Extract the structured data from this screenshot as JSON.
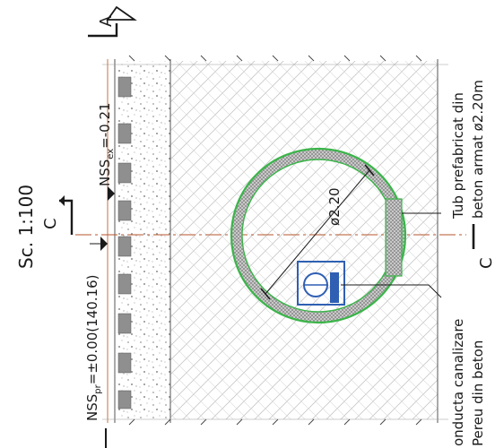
{
  "drawing": {
    "scale": "Sc. 1:100",
    "section_top": "C",
    "section_bottom": "C",
    "section_right": "A",
    "level_finished": "NSS",
    "level_finished_sub": "pr",
    "level_finished_value": "=±0.00(140.16)",
    "level_existing": "NSS",
    "level_existing_sub": "ex",
    "level_existing_value": "=-0.21",
    "diameter": "ø2.20",
    "label_pipe_line1": "Tub prefabricat din",
    "label_pipe_line2": "beton armat ø2.20m",
    "label_duct_line1": "onducta canalizare",
    "label_duct_line2": "Pereu din beton"
  },
  "colors": {
    "ink": "#1a1a1a",
    "pipe_outline": "#3bb54a",
    "pipe_fill": "#8a8a8a",
    "centerline": "#b5562e",
    "layer_line": "#d99a7a",
    "conduit": "#2f5fb3"
  }
}
